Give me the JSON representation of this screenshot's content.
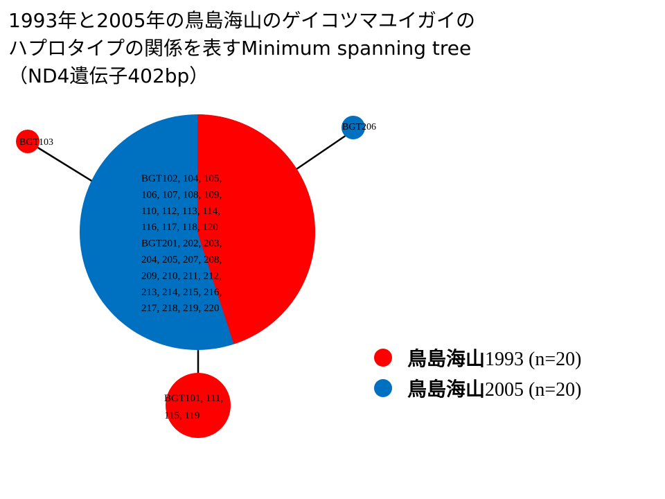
{
  "title": {
    "line1": "1993年と2005年の鳥島海山のゲイコツマユイガイの",
    "line2": "ハプロタイプの関係を表すMinimum spanning tree",
    "line3": "（ND4遺伝子402bp）"
  },
  "colors": {
    "year_1993": "#ff0000",
    "year_2005": "#0070c0",
    "edge": "#000000"
  },
  "nodes": {
    "central": {
      "share_1993": 0.45,
      "share_2005": 0.55,
      "label_lines": [
        "BGT102, 104, 105,",
        "106, 107, 108, 109,",
        "110, 112, 113, 114,",
        "116, 117, 118, 120",
        "BGT201, 202, 203,",
        "204, 205, 207, 208,",
        "209, 210, 211, 212,",
        "213, 214, 215, 216,",
        "217, 218, 219, 220"
      ]
    },
    "bgt103": {
      "color": "year_1993",
      "label_lines": [
        "BGT103"
      ]
    },
    "bgt206": {
      "color": "year_2005",
      "label_lines": [
        "BGT206"
      ]
    },
    "bgt101": {
      "color": "year_1993",
      "label_lines": [
        "BGT101, 111,",
        "115, 119"
      ]
    }
  },
  "legend": [
    {
      "place": "鳥島海山",
      "rest": "1993 (n=20)",
      "color": "year_1993"
    },
    {
      "place": "鳥島海山",
      "rest": "2005 (n=20)",
      "color": "year_2005"
    }
  ]
}
